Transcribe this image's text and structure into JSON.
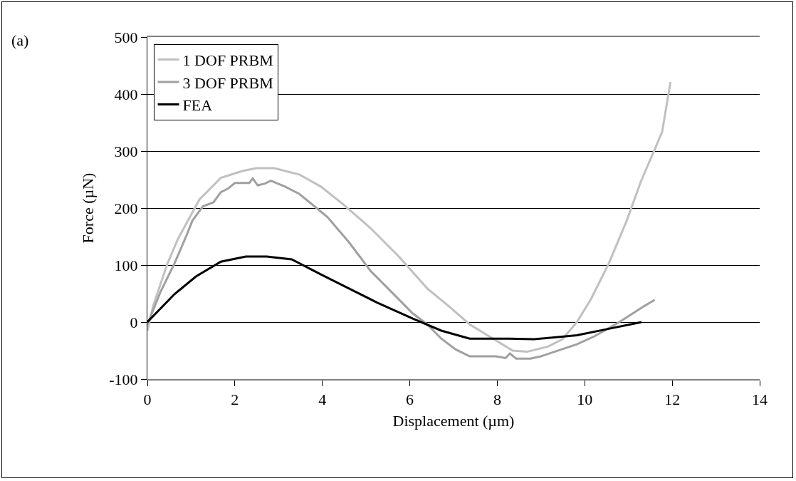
{
  "chart_data": {
    "type": "line",
    "xlabel": "Displacement (µm)",
    "ylabel": "Force (µN)",
    "annotations": [
      "(a)"
    ],
    "xlim": [
      0,
      14
    ],
    "xticks": [
      0,
      2,
      4,
      6,
      8,
      10,
      12,
      14
    ],
    "ylim": [
      -100,
      500
    ],
    "yticks": [
      -100,
      0,
      100,
      200,
      300,
      400,
      500
    ],
    "grid": "y",
    "legend": "top left",
    "marker": "none",
    "line_style": "solid",
    "series": [
      {
        "name": "1 DOF PRBM",
        "color": "#c0c0c0",
        "x": [
          0,
          0.13,
          0.46,
          0.7,
          1.19,
          1.68,
          2.17,
          2.49,
          2.9,
          3.47,
          3.96,
          4.44,
          5.1,
          5.75,
          6.4,
          6.89,
          7.37,
          8.03,
          8.35,
          8.68,
          9.16,
          9.49,
          9.82,
          10.14,
          10.55,
          10.96,
          11.28,
          11.6,
          11.77,
          11.96
        ],
        "values": [
          -15,
          28,
          103,
          146,
          215,
          253,
          265,
          270,
          270,
          259,
          238,
          209,
          165,
          115,
          59,
          28,
          -4,
          -35,
          -50,
          -52,
          -43,
          -30,
          0,
          40,
          103,
          178,
          246,
          303,
          334,
          421
        ]
      },
      {
        "name": "3 DOF PRBM",
        "color": "#a0a0a0",
        "x": [
          0,
          0.3,
          0.62,
          0.9,
          1.03,
          1.27,
          1.51,
          1.68,
          1.84,
          2.0,
          2.33,
          2.41,
          2.52,
          2.69,
          2.82,
          2.98,
          3.14,
          3.47,
          3.87,
          4.12,
          4.61,
          5.1,
          5.58,
          6.07,
          6.4,
          6.72,
          7.05,
          7.37,
          7.97,
          8.19,
          8.29,
          8.43,
          8.76,
          9.0,
          9.82,
          10.22,
          10.79,
          11.36,
          11.6
        ],
        "values": [
          -4,
          53,
          103,
          153,
          178,
          203,
          210,
          228,
          234,
          244,
          244,
          252,
          240,
          243,
          248,
          243,
          238,
          225,
          200,
          184,
          140,
          90,
          53,
          15,
          -4,
          -29,
          -48,
          -60,
          -60,
          -63,
          -55,
          -64,
          -64,
          -60,
          -39,
          -25,
          0,
          28,
          39
        ]
      },
      {
        "name": "FEA",
        "color": "#000000",
        "x": [
          0,
          0.62,
          1.11,
          1.68,
          2.25,
          2.73,
          3.3,
          3.96,
          4.61,
          5.26,
          6.07,
          6.72,
          7.37,
          8.27,
          8.84,
          9.82,
          10.47,
          11.3
        ],
        "values": [
          0,
          49,
          80,
          106,
          115,
          115,
          110,
          84,
          59,
          34,
          6,
          -15,
          -29,
          -29,
          -30,
          -23,
          -13,
          0
        ]
      }
    ]
  }
}
